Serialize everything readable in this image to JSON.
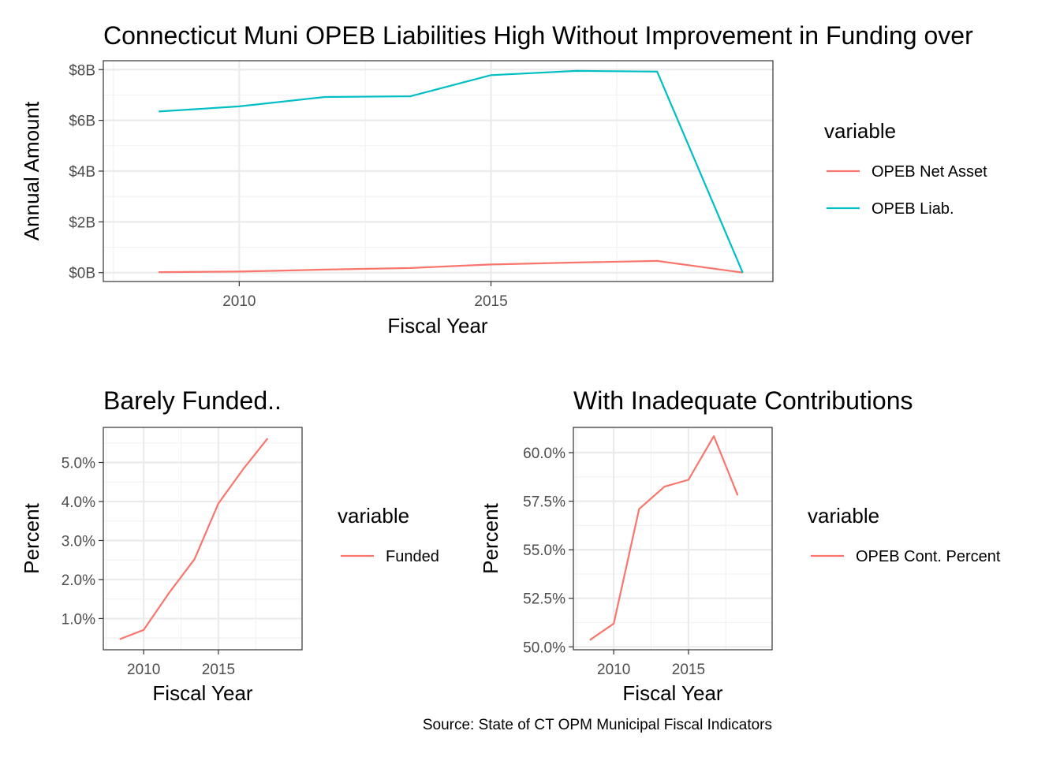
{
  "title": "Connecticut Muni OPEB Liabilities High Without Improvement in Funding over",
  "caption": "Source: State of CT OPM Municipal Fiscal Indicators",
  "chart_data": [
    {
      "type": "line",
      "title": "",
      "xlabel": "Fiscal Year",
      "ylabel": "Annual Amount",
      "xlim": [
        2007.3,
        2020.6
      ],
      "ylim": [
        -0.35,
        8.35
      ],
      "x_ticks": [
        2010,
        2015
      ],
      "y_ticks": [
        0,
        2,
        4,
        6,
        8
      ],
      "y_tick_labels": [
        "$0B",
        "$2B",
        "$4B",
        "$6B",
        "$8B"
      ],
      "grid": true,
      "legend_title": "variable",
      "legend_position": "right",
      "series": [
        {
          "name": "OPEB Net Asset",
          "color": "#F8766D",
          "x": [
            2008.4,
            2010.0,
            2011.7,
            2013.4,
            2015.0,
            2016.7,
            2018.3,
            2020.0
          ],
          "values": [
            0.02,
            0.04,
            0.12,
            0.18,
            0.32,
            0.4,
            0.46,
            0.0
          ]
        },
        {
          "name": "OPEB Liab.",
          "color": "#00BFC4",
          "x": [
            2008.4,
            2010.0,
            2011.7,
            2013.4,
            2015.0,
            2016.7,
            2018.3,
            2020.0
          ],
          "values": [
            6.35,
            6.55,
            6.92,
            6.95,
            7.78,
            7.95,
            7.92,
            0.0
          ]
        }
      ]
    },
    {
      "type": "line",
      "title": "Barely Funded..",
      "xlabel": "Fiscal Year",
      "ylabel": "Percent",
      "xlim": [
        2007.3,
        2020.6
      ],
      "ylim": [
        0.2,
        5.9
      ],
      "x_ticks": [
        2010,
        2015
      ],
      "y_ticks": [
        1,
        2,
        3,
        4,
        5
      ],
      "y_tick_labels": [
        "1.0%",
        "2.0%",
        "3.0%",
        "4.0%",
        "5.0%"
      ],
      "grid": true,
      "legend_title": "variable",
      "legend_position": "right",
      "series": [
        {
          "name": "Funded",
          "color": "#F8766D",
          "x": [
            2008.4,
            2010.0,
            2011.7,
            2013.4,
            2015.0,
            2016.7,
            2018.3
          ],
          "values": [
            0.47,
            0.71,
            1.66,
            2.52,
            3.95,
            4.85,
            5.62
          ]
        }
      ]
    },
    {
      "type": "line",
      "title": "With Inadequate Contributions",
      "xlabel": "Fiscal Year",
      "ylabel": "Percent",
      "xlim": [
        2007.3,
        2020.6
      ],
      "ylim": [
        49.85,
        61.3
      ],
      "x_ticks": [
        2010,
        2015
      ],
      "y_ticks": [
        50,
        52.5,
        55,
        57.5,
        60
      ],
      "y_tick_labels": [
        "50.0%",
        "52.5%",
        "55.0%",
        "57.5%",
        "60.0%"
      ],
      "grid": true,
      "legend_title": "variable",
      "legend_position": "right",
      "series": [
        {
          "name": "OPEB Cont. Percent",
          "color": "#F8766D",
          "x": [
            2008.4,
            2010.0,
            2011.7,
            2013.4,
            2015.0,
            2016.7,
            2018.3
          ],
          "values": [
            50.35,
            51.2,
            57.1,
            58.25,
            58.6,
            60.85,
            57.8
          ]
        }
      ]
    }
  ]
}
